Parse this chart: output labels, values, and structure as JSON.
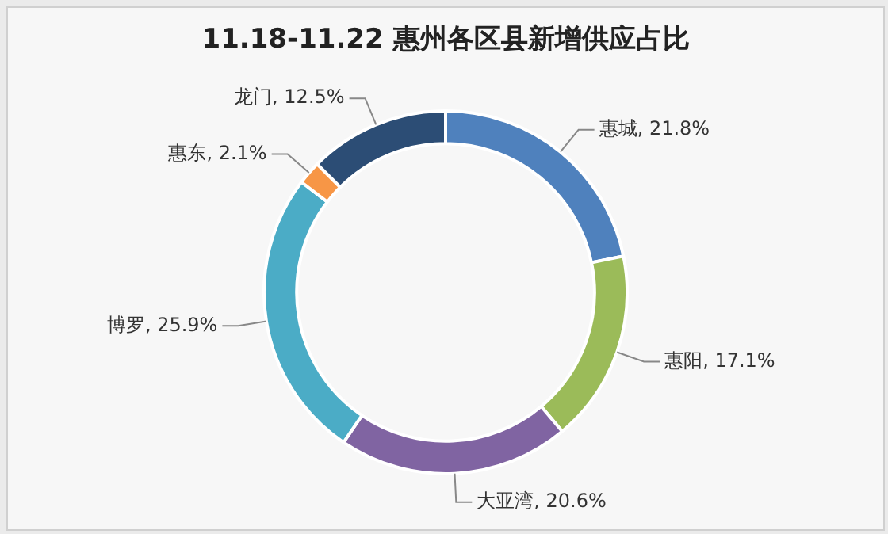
{
  "chart_data": {
    "type": "donut",
    "title": "11.18-11.22 惠州各区县新增供应占比",
    "categories": [
      "惠城",
      "惠阳",
      "大亚湾",
      "博罗",
      "惠东",
      "龙门"
    ],
    "values": [
      21.8,
      17.1,
      20.6,
      25.9,
      2.1,
      12.5
    ],
    "value_labels": [
      "21.8%",
      "17.1%",
      "20.6%",
      "25.9%",
      "2.1%",
      "12.5%"
    ],
    "colors": [
      "#4f81bd",
      "#9bbb59",
      "#8064a2",
      "#4bacc6",
      "#f79646",
      "#2c4d75"
    ],
    "legend": false
  }
}
